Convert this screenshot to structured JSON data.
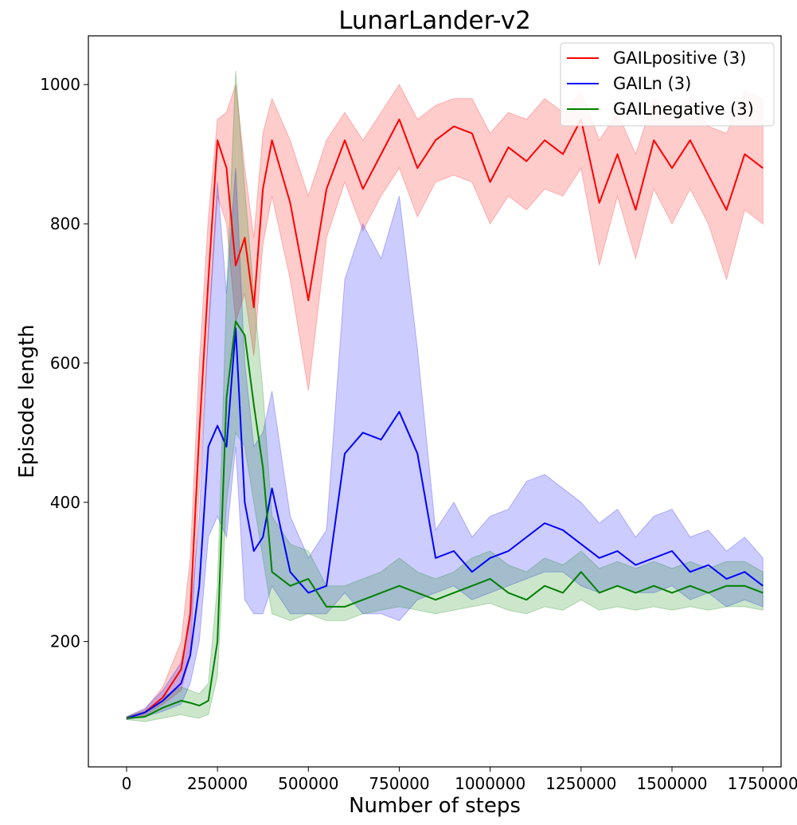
{
  "chart_data": {
    "type": "line",
    "title": "LunarLander-v2",
    "xlabel": "Number of steps",
    "ylabel": "Episode length",
    "xlim": [
      -105000,
      1800000
    ],
    "ylim": [
      20,
      1070
    ],
    "xticks": [
      0,
      250000,
      500000,
      750000,
      1000000,
      1250000,
      1500000,
      1750000
    ],
    "yticks": [
      200,
      400,
      600,
      800,
      1000
    ],
    "grid": false,
    "legend_position": "top-right",
    "series": [
      {
        "name": "GAILpositive (3)",
        "color": "#ff0000",
        "band_color": "#ff0000",
        "x": [
          0,
          50000,
          100000,
          150000,
          175000,
          200000,
          225000,
          250000,
          275000,
          300000,
          325000,
          350000,
          375000,
          400000,
          450000,
          500000,
          550000,
          600000,
          650000,
          700000,
          750000,
          800000,
          850000,
          900000,
          950000,
          1000000,
          1050000,
          1100000,
          1150000,
          1200000,
          1250000,
          1300000,
          1350000,
          1400000,
          1450000,
          1500000,
          1550000,
          1600000,
          1650000,
          1700000,
          1750000
        ],
        "y": [
          90,
          98,
          120,
          160,
          240,
          500,
          720,
          920,
          880,
          740,
          780,
          680,
          850,
          920,
          830,
          690,
          850,
          920,
          850,
          900,
          950,
          880,
          920,
          940,
          930,
          860,
          910,
          890,
          920,
          900,
          950,
          830,
          900,
          820,
          920,
          880,
          920,
          870,
          820,
          900,
          880
        ],
        "lower": [
          88,
          94,
          110,
          130,
          180,
          420,
          640,
          840,
          800,
          660,
          700,
          610,
          770,
          840,
          720,
          560,
          780,
          860,
          790,
          840,
          880,
          810,
          860,
          870,
          860,
          800,
          840,
          820,
          850,
          840,
          880,
          740,
          840,
          750,
          850,
          800,
          850,
          800,
          720,
          820,
          800
        ],
        "upper": [
          92,
          102,
          135,
          200,
          320,
          600,
          810,
          950,
          960,
          1000,
          880,
          780,
          930,
          980,
          920,
          840,
          920,
          960,
          920,
          960,
          1000,
          950,
          970,
          980,
          980,
          930,
          960,
          950,
          980,
          960,
          990,
          920,
          960,
          900,
          980,
          960,
          980,
          940,
          930,
          990,
          980
        ]
      },
      {
        "name": "GAILn (3)",
        "color": "#0000ff",
        "band_color": "#0000ff",
        "x": [
          0,
          50000,
          100000,
          150000,
          175000,
          200000,
          225000,
          250000,
          275000,
          300000,
          325000,
          350000,
          375000,
          400000,
          450000,
          500000,
          550000,
          600000,
          650000,
          700000,
          750000,
          800000,
          850000,
          900000,
          950000,
          1000000,
          1050000,
          1100000,
          1150000,
          1200000,
          1250000,
          1300000,
          1350000,
          1400000,
          1450000,
          1500000,
          1550000,
          1600000,
          1650000,
          1700000,
          1750000
        ],
        "y": [
          90,
          98,
          115,
          140,
          180,
          280,
          480,
          510,
          480,
          650,
          400,
          330,
          350,
          420,
          300,
          270,
          280,
          470,
          500,
          490,
          530,
          470,
          320,
          330,
          300,
          320,
          330,
          350,
          370,
          360,
          340,
          320,
          330,
          310,
          320,
          330,
          300,
          310,
          290,
          300,
          280
        ],
        "lower": [
          88,
          92,
          100,
          110,
          140,
          200,
          350,
          380,
          350,
          480,
          260,
          240,
          240,
          280,
          240,
          240,
          240,
          270,
          240,
          240,
          230,
          260,
          270,
          280,
          260,
          270,
          280,
          290,
          300,
          300,
          280,
          270,
          280,
          270,
          270,
          280,
          260,
          270,
          250,
          260,
          250
        ],
        "upper": [
          92,
          104,
          130,
          170,
          230,
          380,
          650,
          860,
          700,
          880,
          600,
          480,
          500,
          560,
          380,
          320,
          360,
          720,
          800,
          750,
          840,
          620,
          360,
          400,
          350,
          380,
          390,
          430,
          440,
          420,
          400,
          370,
          390,
          350,
          380,
          390,
          350,
          360,
          330,
          350,
          320
        ]
      },
      {
        "name": "GAILnegative (3)",
        "color": "#008000",
        "band_color": "#008000",
        "x": [
          0,
          50000,
          100000,
          150000,
          175000,
          200000,
          225000,
          250000,
          275000,
          300000,
          325000,
          350000,
          375000,
          400000,
          450000,
          500000,
          550000,
          600000,
          650000,
          700000,
          750000,
          800000,
          850000,
          900000,
          950000,
          1000000,
          1050000,
          1100000,
          1150000,
          1200000,
          1250000,
          1300000,
          1350000,
          1400000,
          1450000,
          1500000,
          1550000,
          1600000,
          1650000,
          1700000,
          1750000
        ],
        "y": [
          90,
          92,
          105,
          115,
          112,
          108,
          115,
          200,
          550,
          660,
          640,
          540,
          450,
          300,
          280,
          290,
          250,
          250,
          260,
          270,
          280,
          270,
          260,
          270,
          280,
          290,
          270,
          260,
          280,
          270,
          300,
          270,
          280,
          270,
          280,
          270,
          280,
          270,
          280,
          280,
          270
        ],
        "lower": [
          88,
          85,
          90,
          95,
          92,
          90,
          95,
          150,
          400,
          500,
          480,
          400,
          320,
          240,
          230,
          240,
          230,
          230,
          240,
          245,
          250,
          245,
          240,
          245,
          250,
          255,
          245,
          240,
          250,
          245,
          260,
          245,
          250,
          245,
          250,
          245,
          250,
          245,
          250,
          250,
          245
        ],
        "upper": [
          92,
          100,
          120,
          135,
          130,
          125,
          140,
          280,
          700,
          1020,
          850,
          700,
          560,
          380,
          340,
          330,
          280,
          280,
          290,
          300,
          320,
          300,
          290,
          300,
          320,
          330,
          310,
          300,
          320,
          310,
          330,
          305,
          315,
          305,
          315,
          305,
          315,
          305,
          315,
          315,
          300
        ]
      }
    ]
  }
}
